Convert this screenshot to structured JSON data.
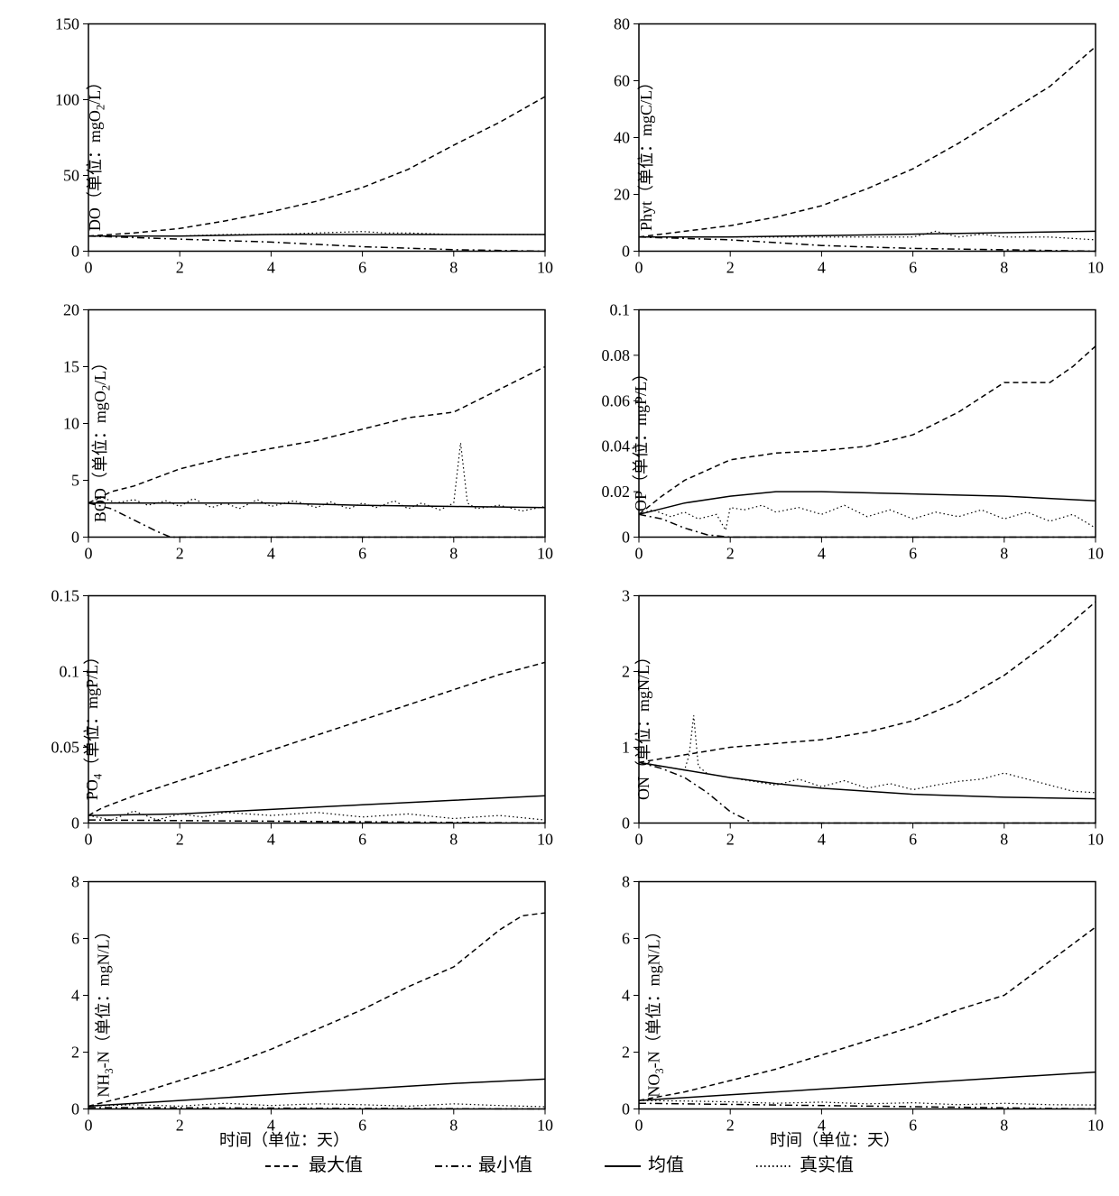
{
  "figure": {
    "background_color": "#ffffff",
    "stroke_color": "#000000",
    "font_family": "SimSun, serif",
    "tick_fontsize": 18,
    "label_fontsize": 18,
    "legend_fontsize": 20,
    "line_width_dashed": 1.5,
    "line_width_solid": 1.5,
    "line_width_dotted": 1.2,
    "dash_pattern": "6,4",
    "dot_pattern": "1.5,3",
    "dashdot_pattern": "8,4,2,4"
  },
  "xaxis": {
    "label": "时间（单位：天）",
    "min": 0,
    "max": 10,
    "ticks": [
      0,
      2,
      4,
      6,
      8,
      10
    ]
  },
  "legend": {
    "items": [
      {
        "label": "最大值",
        "style": "dashed"
      },
      {
        "label": "最小值",
        "style": "dashdot"
      },
      {
        "label": "均值",
        "style": "solid"
      },
      {
        "label": "真实值",
        "style": "dotted"
      }
    ]
  },
  "charts": [
    {
      "id": "do",
      "ylabel_html": "DO（单位：mgO<sub>2</sub>/L）",
      "ylim": [
        0,
        150
      ],
      "yticks": [
        0,
        50,
        100,
        150
      ],
      "show_xlabel": false,
      "series": {
        "max": {
          "x": [
            0,
            1,
            2,
            3,
            4,
            5,
            6,
            7,
            8,
            9,
            10
          ],
          "y": [
            10,
            12,
            15,
            20,
            26,
            33,
            42,
            54,
            70,
            85,
            102
          ]
        },
        "min": {
          "x": [
            0,
            2,
            4,
            6,
            8,
            10
          ],
          "y": [
            10,
            8,
            6,
            3,
            1,
            0
          ]
        },
        "mean": {
          "x": [
            0,
            2,
            4,
            6,
            8,
            10
          ],
          "y": [
            10,
            10,
            11,
            11,
            11,
            11
          ]
        },
        "real": {
          "x": [
            0,
            1,
            2,
            3,
            4,
            5,
            6,
            6.5,
            7,
            8,
            9,
            10
          ],
          "y": [
            10,
            10,
            10,
            11,
            11,
            12,
            13,
            12,
            12,
            11,
            11,
            11
          ]
        }
      }
    },
    {
      "id": "phyt",
      "ylabel_html": "Phyt（单位：mgC/L）",
      "ylim": [
        0,
        80
      ],
      "yticks": [
        0,
        20,
        40,
        60,
        80
      ],
      "show_xlabel": false,
      "series": {
        "max": {
          "x": [
            0,
            1,
            2,
            3,
            4,
            5,
            6,
            7,
            8,
            9,
            10
          ],
          "y": [
            5,
            7,
            9,
            12,
            16,
            22,
            29,
            38,
            48,
            58,
            72
          ]
        },
        "min": {
          "x": [
            0,
            2,
            4,
            6,
            8,
            10
          ],
          "y": [
            5,
            4,
            2,
            1,
            0.5,
            0
          ]
        },
        "mean": {
          "x": [
            0,
            2,
            4,
            6,
            8,
            10
          ],
          "y": [
            5,
            5,
            5.5,
            6,
            6.5,
            7
          ]
        },
        "real": {
          "x": [
            0,
            1,
            2,
            3,
            4,
            5,
            6,
            6.5,
            7,
            7.5,
            8,
            9,
            10
          ],
          "y": [
            5,
            5,
            5,
            5,
            5,
            5,
            5,
            7,
            5,
            6,
            5,
            5,
            4
          ]
        }
      }
    },
    {
      "id": "bod",
      "ylabel_html": "BOD（单位：mgO<sub>2</sub>/L）",
      "ylim": [
        0,
        20
      ],
      "yticks": [
        0,
        5,
        10,
        15,
        20
      ],
      "show_xlabel": false,
      "series": {
        "max": {
          "x": [
            0,
            0.5,
            1,
            2,
            3,
            4,
            5,
            6,
            7,
            8,
            9,
            10
          ],
          "y": [
            3,
            4,
            4.5,
            6,
            7,
            7.8,
            8.5,
            9.5,
            10.5,
            11,
            13,
            15
          ]
        },
        "min": {
          "x": [
            0,
            0.5,
            1,
            1.5,
            1.8,
            2,
            10
          ],
          "y": [
            3,
            2.5,
            1.5,
            0.5,
            0,
            0,
            0
          ]
        },
        "mean": {
          "x": [
            0,
            2,
            4,
            6,
            8,
            10
          ],
          "y": [
            3,
            3,
            3,
            2.8,
            2.7,
            2.6
          ]
        },
        "real": {
          "x": [
            0,
            0.3,
            0.6,
            1,
            1.3,
            1.7,
            2,
            2.3,
            2.7,
            3,
            3.3,
            3.7,
            4,
            4.5,
            5,
            5.3,
            5.7,
            6,
            6.3,
            6.7,
            7,
            7.3,
            7.7,
            8,
            8.15,
            8.3,
            8.5,
            9,
            9.5,
            10
          ],
          "y": [
            3,
            3.5,
            3,
            3.3,
            2.8,
            3.2,
            2.7,
            3.4,
            2.6,
            3,
            2.5,
            3.3,
            2.7,
            3.2,
            2.6,
            3.1,
            2.5,
            3,
            2.6,
            3.2,
            2.5,
            3,
            2.4,
            3,
            8.3,
            3,
            2.5,
            2.8,
            2.3,
            2.7
          ]
        }
      }
    },
    {
      "id": "op",
      "ylabel_html": "OP（单位：mgP/L）",
      "ylim": [
        0,
        0.1
      ],
      "yticks": [
        0,
        0.02,
        0.04,
        0.06,
        0.08,
        0.1
      ],
      "show_xlabel": false,
      "series": {
        "max": {
          "x": [
            0,
            0.5,
            1,
            2,
            3,
            4,
            5,
            6,
            7,
            8,
            9,
            9.5,
            10
          ],
          "y": [
            0.01,
            0.018,
            0.025,
            0.034,
            0.037,
            0.038,
            0.04,
            0.045,
            0.055,
            0.068,
            0.068,
            0.075,
            0.084
          ]
        },
        "min": {
          "x": [
            0,
            0.5,
            1,
            1.5,
            2,
            10
          ],
          "y": [
            0.01,
            0.008,
            0.004,
            0.001,
            0,
            0
          ]
        },
        "mean": {
          "x": [
            0,
            1,
            2,
            3,
            4,
            6,
            8,
            10
          ],
          "y": [
            0.01,
            0.015,
            0.018,
            0.02,
            0.02,
            0.019,
            0.018,
            0.016
          ]
        },
        "real": {
          "x": [
            0,
            0.3,
            0.7,
            1,
            1.3,
            1.7,
            1.9,
            2,
            2.3,
            2.7,
            3,
            3.5,
            4,
            4.5,
            5,
            5.5,
            6,
            6.5,
            7,
            7.5,
            8,
            8.5,
            9,
            9.5,
            10
          ],
          "y": [
            0.01,
            0.012,
            0.009,
            0.011,
            0.008,
            0.01,
            0.003,
            0.013,
            0.012,
            0.014,
            0.011,
            0.013,
            0.01,
            0.014,
            0.009,
            0.012,
            0.008,
            0.011,
            0.009,
            0.012,
            0.008,
            0.011,
            0.007,
            0.01,
            0.004
          ]
        }
      }
    },
    {
      "id": "po4",
      "ylabel_html": "PO<sub>4</sub>（单位：mgP/L）",
      "ylim": [
        0,
        0.15
      ],
      "yticks": [
        0,
        0.05,
        0.1,
        0.15
      ],
      "show_xlabel": false,
      "series": {
        "max": {
          "x": [
            0,
            0.3,
            1,
            2,
            3,
            4,
            5,
            6,
            7,
            8,
            9,
            10
          ],
          "y": [
            0.005,
            0.01,
            0.018,
            0.028,
            0.038,
            0.048,
            0.058,
            0.068,
            0.078,
            0.088,
            0.098,
            0.106
          ]
        },
        "min": {
          "x": [
            0,
            10
          ],
          "y": [
            0.002,
            0
          ]
        },
        "mean": {
          "x": [
            0,
            2,
            4,
            6,
            8,
            10
          ],
          "y": [
            0.005,
            0.006,
            0.009,
            0.012,
            0.015,
            0.018
          ]
        },
        "real": {
          "x": [
            0,
            0.5,
            1,
            1.5,
            2,
            2.5,
            3,
            4,
            5,
            6,
            7,
            8,
            9,
            10
          ],
          "y": [
            0.005,
            0.002,
            0.008,
            0.002,
            0.006,
            0.004,
            0.007,
            0.005,
            0.007,
            0.004,
            0.006,
            0.003,
            0.005,
            0.002
          ]
        }
      }
    },
    {
      "id": "on",
      "ylabel_html": "ON（单位：mgN/L）",
      "ylim": [
        0,
        3
      ],
      "yticks": [
        0,
        1,
        2,
        3
      ],
      "show_xlabel": false,
      "series": {
        "max": {
          "x": [
            0,
            1,
            2,
            3,
            4,
            5,
            6,
            7,
            8,
            9,
            10
          ],
          "y": [
            0.8,
            0.9,
            1.0,
            1.05,
            1.1,
            1.2,
            1.35,
            1.6,
            1.95,
            2.4,
            2.92
          ]
        },
        "min": {
          "x": [
            0,
            0.5,
            1,
            1.5,
            2,
            2.5,
            10
          ],
          "y": [
            0.8,
            0.72,
            0.6,
            0.4,
            0.15,
            0,
            0
          ]
        },
        "mean": {
          "x": [
            0,
            1,
            2,
            3,
            4,
            5,
            6,
            8,
            10
          ],
          "y": [
            0.8,
            0.7,
            0.6,
            0.52,
            0.46,
            0.42,
            0.38,
            0.34,
            0.32
          ]
        },
        "real": {
          "x": [
            0,
            0.5,
            1,
            1.1,
            1.2,
            1.3,
            1.5,
            2,
            2.5,
            3,
            3.5,
            4,
            4.5,
            5,
            5.5,
            6,
            6.5,
            7,
            7.5,
            8,
            8.5,
            9,
            9.5,
            10
          ],
          "y": [
            0.8,
            0.75,
            0.7,
            0.9,
            1.42,
            0.75,
            0.65,
            0.6,
            0.55,
            0.5,
            0.58,
            0.48,
            0.56,
            0.46,
            0.52,
            0.44,
            0.5,
            0.55,
            0.58,
            0.66,
            0.58,
            0.5,
            0.42,
            0.4
          ]
        }
      }
    },
    {
      "id": "nh3n",
      "ylabel_html": "NH<sub>3</sub>-N（单位：mgN/L）",
      "ylim": [
        0,
        8
      ],
      "yticks": [
        0,
        2,
        4,
        6,
        8
      ],
      "show_xlabel": true,
      "series": {
        "max": {
          "x": [
            0,
            1,
            2,
            3,
            4,
            5,
            6,
            7,
            8,
            9,
            9.5,
            10
          ],
          "y": [
            0.1,
            0.5,
            1.0,
            1.5,
            2.1,
            2.8,
            3.5,
            4.3,
            5.0,
            6.3,
            6.8,
            6.9
          ]
        },
        "min": {
          "x": [
            0,
            10
          ],
          "y": [
            0.05,
            0
          ]
        },
        "mean": {
          "x": [
            0,
            2,
            4,
            6,
            8,
            10
          ],
          "y": [
            0.1,
            0.3,
            0.5,
            0.7,
            0.9,
            1.05
          ]
        },
        "real": {
          "x": [
            0,
            1,
            2,
            3,
            4,
            5,
            6,
            7,
            8,
            9,
            10
          ],
          "y": [
            0.1,
            0.15,
            0.1,
            0.2,
            0.12,
            0.18,
            0.15,
            0.1,
            0.18,
            0.12,
            0.08
          ]
        }
      }
    },
    {
      "id": "no3n",
      "ylabel_html": "NO<sub>3</sub>-N（单位：mgN/L）",
      "ylim": [
        0,
        8
      ],
      "yticks": [
        0,
        2,
        4,
        6,
        8
      ],
      "show_xlabel": true,
      "series": {
        "max": {
          "x": [
            0,
            1,
            2,
            3,
            4,
            5,
            6,
            7,
            8,
            8.5,
            9,
            10
          ],
          "y": [
            0.3,
            0.6,
            1.0,
            1.4,
            1.9,
            2.4,
            2.9,
            3.5,
            4.0,
            4.6,
            5.2,
            6.4
          ]
        },
        "min": {
          "x": [
            0,
            10
          ],
          "y": [
            0.2,
            0
          ]
        },
        "mean": {
          "x": [
            0,
            2,
            4,
            6,
            8,
            10
          ],
          "y": [
            0.3,
            0.5,
            0.7,
            0.9,
            1.1,
            1.3
          ]
        },
        "real": {
          "x": [
            0,
            1,
            2,
            3,
            4,
            5,
            6,
            7,
            8,
            9,
            10
          ],
          "y": [
            0.3,
            0.28,
            0.25,
            0.2,
            0.24,
            0.18,
            0.22,
            0.15,
            0.2,
            0.15,
            0.14
          ]
        }
      }
    }
  ]
}
